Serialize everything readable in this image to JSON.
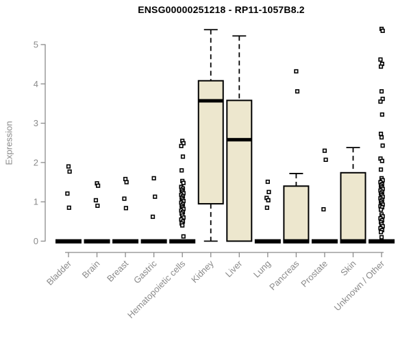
{
  "chart_data": {
    "type": "boxplot",
    "title": "ENSG00000251218 - RP11-1057B8.2",
    "ylabel": "Expression",
    "xlabel": "",
    "ylim": [
      0,
      5.45
    ],
    "yticks": [
      "0",
      "1",
      "2",
      "3",
      "4",
      "5"
    ],
    "grid": false,
    "legend": "none",
    "categories": [
      "Bladder",
      "Brain",
      "Breast",
      "Gastric",
      "Hematopoietic cells",
      "Kidney",
      "Liver",
      "Lung",
      "Pancreas",
      "Prostate",
      "Skin",
      "Unknown / Other"
    ],
    "series": [
      {
        "category": "Bladder",
        "q1": 0,
        "median": 0,
        "q3": 0,
        "whisker_low": 0,
        "whisker_high": 0,
        "outliers": [
          1.9,
          1.77,
          1.21,
          0.85
        ]
      },
      {
        "category": "Brain",
        "q1": 0,
        "median": 0,
        "q3": 0,
        "whisker_low": 0,
        "whisker_high": 0,
        "outliers": [
          1.47,
          1.41,
          1.04,
          0.9
        ]
      },
      {
        "category": "Breast",
        "q1": 0,
        "median": 0,
        "q3": 0,
        "whisker_low": 0,
        "whisker_high": 0,
        "outliers": [
          1.58,
          1.5,
          1.08,
          0.84
        ]
      },
      {
        "category": "Gastric",
        "q1": 0,
        "median": 0,
        "q3": 0,
        "whisker_low": 0,
        "whisker_high": 0,
        "outliers": [
          1.6,
          1.13,
          0.62
        ]
      },
      {
        "category": "Hematopoietic cells",
        "q1": 0,
        "median": 0,
        "q3": 0,
        "whisker_low": 0,
        "whisker_high": 0,
        "outliers": [
          2.55,
          2.49,
          2.42,
          2.15,
          1.8,
          1.53,
          1.48,
          1.38,
          1.34,
          1.3,
          1.26,
          1.22,
          1.18,
          1.14,
          1.1,
          1.06,
          1.02,
          0.98,
          0.94,
          0.9,
          0.86,
          0.82,
          0.78,
          0.74,
          0.7,
          0.65,
          0.6,
          0.55,
          0.5,
          0.45,
          0.4,
          0.12
        ]
      },
      {
        "category": "Kidney",
        "q1": 0.95,
        "median": 3.57,
        "q3": 4.08,
        "whisker_low": 0,
        "whisker_high": 5.38,
        "outliers": []
      },
      {
        "category": "Liver",
        "q1": 0,
        "median": 2.58,
        "q3": 3.58,
        "whisker_low": 0,
        "whisker_high": 5.22,
        "outliers": []
      },
      {
        "category": "Lung",
        "q1": 0,
        "median": 0,
        "q3": 0,
        "whisker_low": 0,
        "whisker_high": 0,
        "outliers": [
          1.51,
          1.25,
          1.1,
          1.04,
          0.85
        ]
      },
      {
        "category": "Pancreas",
        "q1": 0,
        "median": 0,
        "q3": 1.4,
        "whisker_low": 0,
        "whisker_high": 1.72,
        "outliers": [
          4.32,
          3.81
        ]
      },
      {
        "category": "Prostate",
        "q1": 0,
        "median": 0,
        "q3": 0,
        "whisker_low": 0,
        "whisker_high": 0,
        "outliers": [
          2.3,
          2.07,
          0.81
        ]
      },
      {
        "category": "Skin",
        "q1": 0,
        "median": 0,
        "q3": 1.74,
        "whisker_low": 0,
        "whisker_high": 2.38,
        "outliers": []
      },
      {
        "category": "Unknown / Other",
        "q1": 0,
        "median": 0,
        "q3": 0,
        "whisker_low": 0,
        "whisker_high": 0,
        "outliers": [
          5.4,
          5.35,
          4.62,
          4.51,
          4.44,
          3.81,
          3.62,
          3.55,
          3.22,
          2.73,
          2.64,
          2.43,
          2.1,
          2.04,
          1.82,
          1.6,
          1.55,
          1.5,
          1.45,
          1.41,
          1.37,
          1.33,
          1.29,
          1.25,
          1.21,
          1.17,
          1.13,
          1.09,
          1.05,
          1.01,
          0.97,
          0.93,
          0.89,
          0.86,
          0.8,
          0.68,
          0.63,
          0.58,
          0.53,
          0.48,
          0.43,
          0.38,
          0.33,
          0.28,
          0.23,
          0.1
        ]
      }
    ],
    "colors": {
      "box_fill": "#EDE7CE",
      "box_stroke": "#000000",
      "median": "#000000",
      "outlier_stroke": "#000000",
      "outlier_fill": "#ffffff",
      "axis": "#8a8a8a",
      "tick_label": "#8a8a8a",
      "title": "#000000"
    }
  }
}
